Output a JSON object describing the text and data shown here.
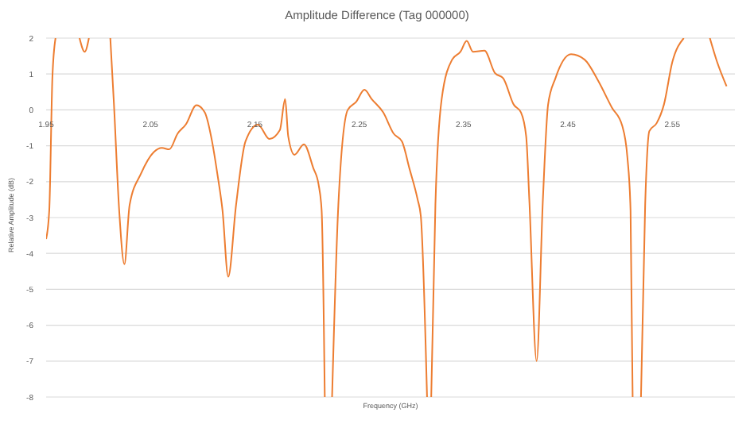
{
  "chart_data": {
    "type": "line",
    "title": "Amplitude Difference (Tag 000000)",
    "xlabel": "Frequency (GHz)",
    "ylabel": "Relative Amplitude (dB)",
    "xlim": [
      1.95,
      2.61
    ],
    "xticks": [
      1.95,
      2.05,
      2.15,
      2.25,
      2.35,
      2.45,
      2.55
    ],
    "ylim": [
      -8,
      2
    ],
    "yticks": [
      -8,
      -7,
      -6,
      -5,
      -4,
      -3,
      -2,
      -1,
      0,
      1,
      2
    ],
    "grid": "y",
    "legend": false,
    "marker": "none",
    "line_style": "solid",
    "series": [
      {
        "color": "#ed7d31",
        "x": [
          1.95,
          1.953,
          1.956,
          1.959,
          1.97,
          1.982,
          1.987,
          1.991,
          2.0,
          2.0115,
          2.015,
          2.02,
          2.025,
          2.03,
          2.041,
          2.053,
          2.061,
          2.068,
          2.076,
          2.084,
          2.094,
          2.102,
          2.109,
          2.114,
          2.119,
          2.1245,
          2.132,
          2.141,
          2.153,
          2.164,
          2.174,
          2.179,
          2.182,
          2.188,
          2.197,
          2.206,
          2.211,
          2.214,
          2.217,
          2.22,
          2.224,
          2.23,
          2.239,
          2.247,
          2.255,
          2.262,
          2.273,
          2.283,
          2.291,
          2.298,
          2.306,
          2.309,
          2.315,
          2.317,
          2.319,
          2.323,
          2.329,
          2.339,
          2.347,
          2.353,
          2.359,
          2.37,
          2.38,
          2.388,
          2.398,
          2.405,
          2.41,
          2.413,
          2.42,
          2.426,
          2.431,
          2.438,
          2.453,
          2.466,
          2.479,
          2.492,
          2.502,
          2.507,
          2.51,
          2.512,
          2.516,
          2.52,
          2.524,
          2.528,
          2.535,
          2.542,
          2.55,
          2.561,
          2.575,
          2.586,
          2.593,
          2.602
        ],
        "values": [
          -3.6,
          -2.8,
          0.9,
          2,
          null,
          2,
          1.62,
          2,
          null,
          2,
          0.15,
          -2.8,
          -4.3,
          -2.65,
          -1.77,
          -1.18,
          -1.06,
          -1.1,
          -0.66,
          -0.4,
          0.13,
          -0.07,
          -0.88,
          -1.77,
          -2.8,
          -4.65,
          -2.65,
          -0.88,
          -0.41,
          -0.81,
          -0.56,
          0.3,
          -0.74,
          -1.25,
          -0.96,
          -1.62,
          -2.07,
          -2.8,
          -8,
          null,
          -8,
          -2.65,
          0,
          0.22,
          0.56,
          0.3,
          -0.07,
          -0.66,
          -0.88,
          -1.62,
          -2.5,
          -2.95,
          -8,
          null,
          -8,
          -2.65,
          0.3,
          1.4,
          1.62,
          1.92,
          1.62,
          1.65,
          1.03,
          0.88,
          0.15,
          -0.07,
          -0.74,
          -2.5,
          -7.0,
          -2.5,
          0.15,
          0.88,
          1.55,
          1.4,
          0.81,
          0.07,
          -0.44,
          -1.33,
          -2.8,
          -8,
          null,
          -8,
          -2.65,
          -0.59,
          -0.37,
          0.15,
          1.33,
          2,
          null,
          2,
          1.33,
          0.66
        ]
      }
    ]
  }
}
